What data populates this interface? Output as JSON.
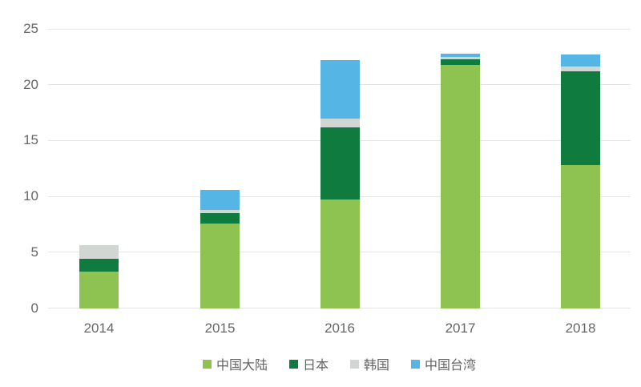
{
  "chart_data": {
    "type": "bar",
    "stacked": true,
    "title": "",
    "categories": [
      "2014",
      "2015",
      "2016",
      "2017",
      "2018"
    ],
    "series": [
      {
        "name": "中国大陆",
        "color": "#8EC351",
        "values": [
          3.3,
          7.6,
          9.7,
          21.8,
          12.8
        ]
      },
      {
        "name": "日本",
        "color": "#0F7B3E",
        "values": [
          1.1,
          0.9,
          6.5,
          0.5,
          8.4
        ]
      },
      {
        "name": "韩国",
        "color": "#D2D6D3",
        "values": [
          1.2,
          0.3,
          0.8,
          0.2,
          0.4
        ]
      },
      {
        "name": "中国台湾",
        "color": "#55B5E5",
        "values": [
          0,
          1.8,
          5.2,
          0.3,
          1.1
        ]
      }
    ],
    "totals": [
      5.6,
      10.6,
      22.2,
      22.8,
      22.7
    ],
    "yticks": [
      0,
      5,
      10,
      15,
      20,
      25
    ],
    "ylim": [
      0,
      25
    ],
    "grid": true,
    "legend_position": "bottom",
    "colors": {
      "background": "#FFFFFF",
      "gridline": "#E4E4E4",
      "axis_text": "#666666"
    }
  }
}
